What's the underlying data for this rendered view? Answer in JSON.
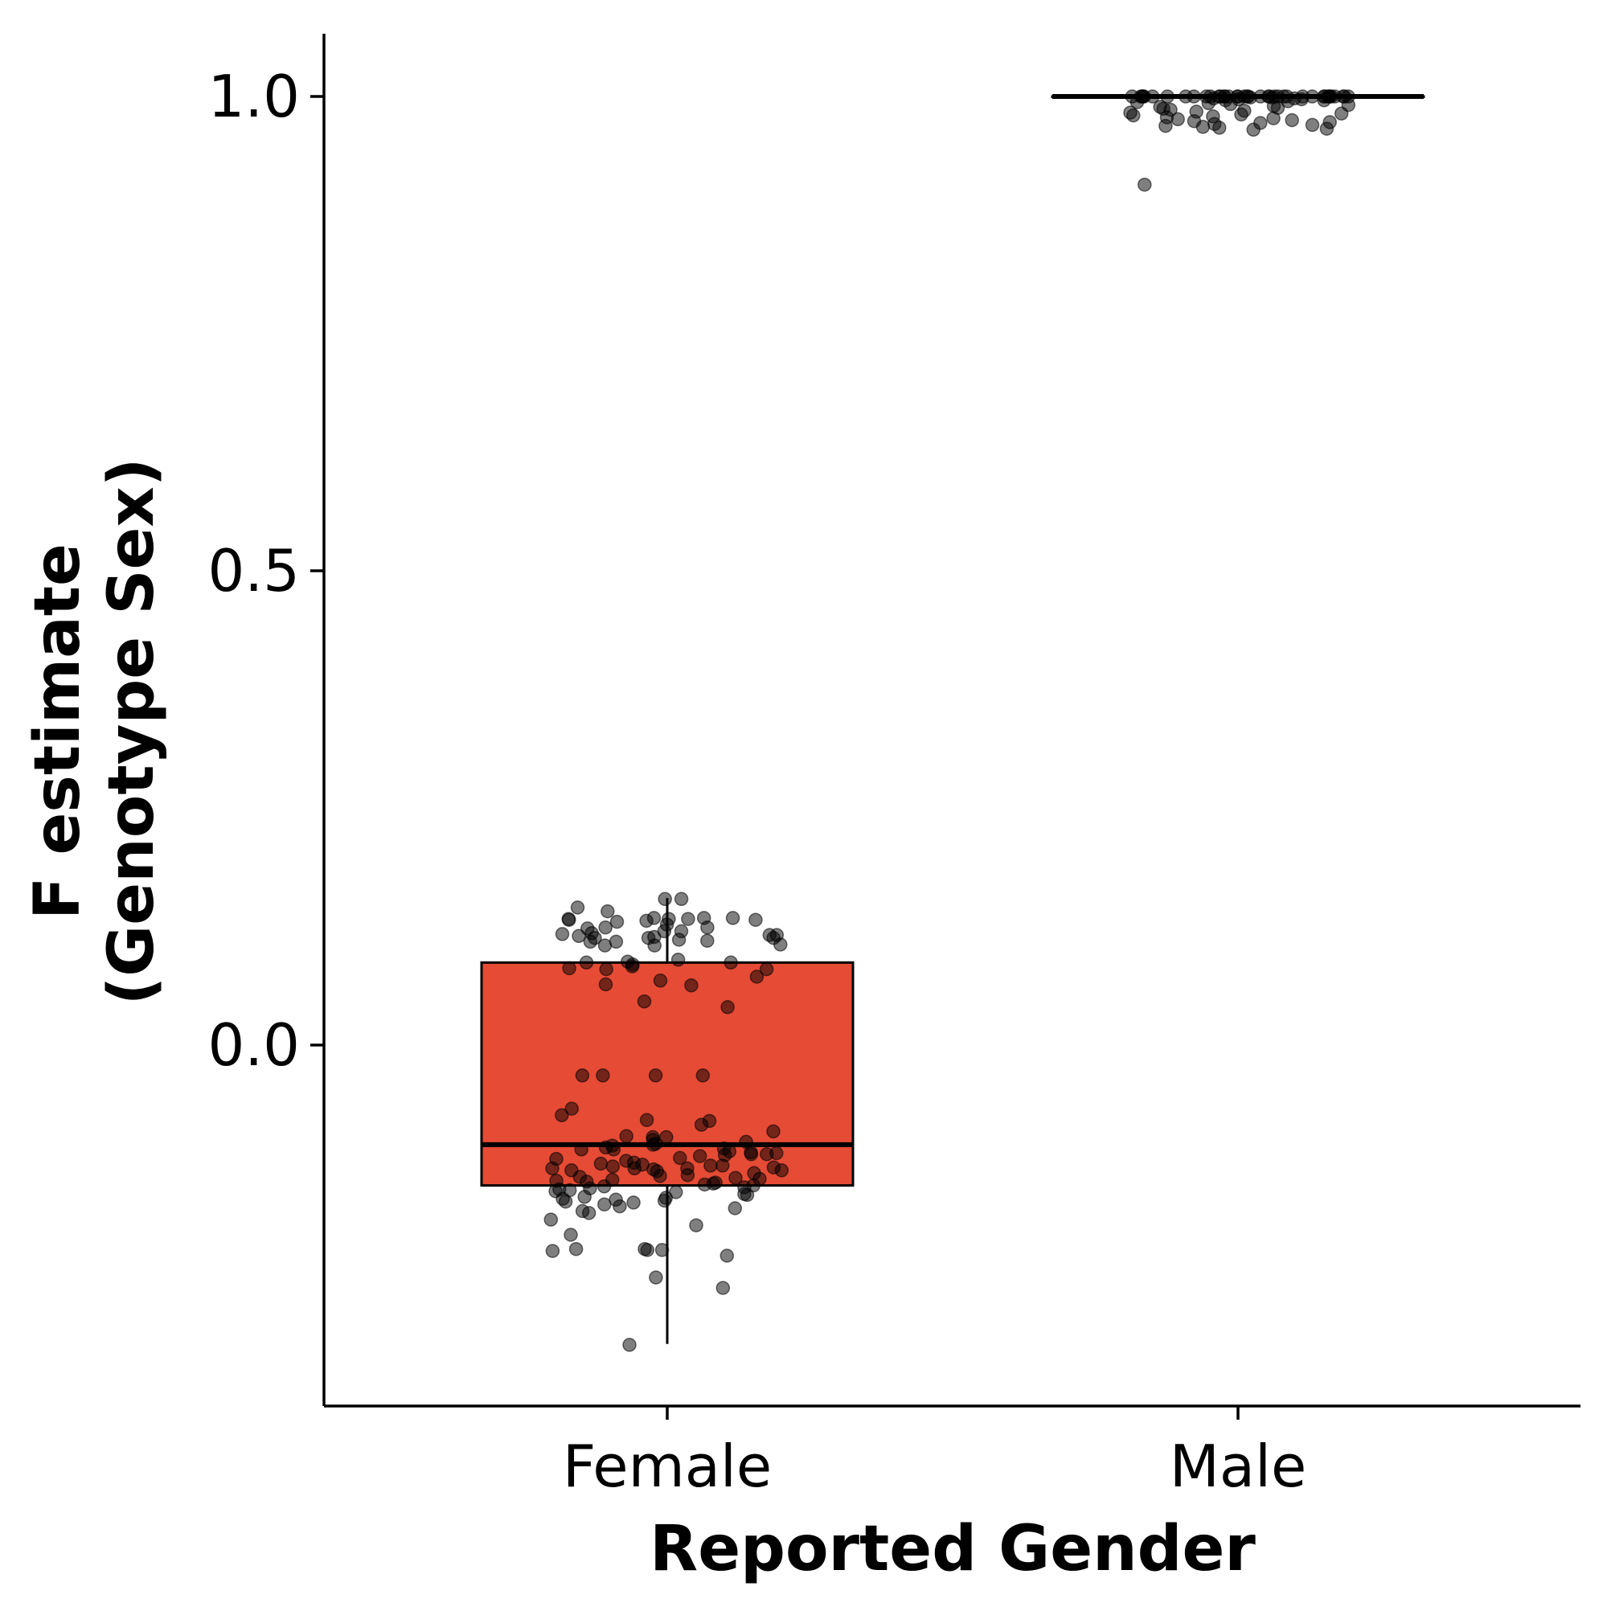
{
  "chart_data": {
    "type": "box",
    "xlabel": "Reported Gender",
    "ylabel": "F estimate\n(Genotype Sex)",
    "ylim": [
      -0.38,
      1.07
    ],
    "yticks": [
      0.0,
      0.5,
      1.0
    ],
    "ytick_labels": [
      "0.0",
      "0.5",
      "1.0"
    ],
    "grid": false,
    "legend": "none",
    "categories": [
      "Female",
      "Male"
    ],
    "box_color": "#E64B35",
    "boxes": [
      {
        "category": "Female",
        "whisker_low": -0.315,
        "q1": -0.148,
        "median": -0.105,
        "q3": 0.087,
        "whisker_high": 0.155,
        "fill": "#E64B35"
      },
      {
        "category": "Male",
        "whisker_low": 1.0,
        "q1": 1.0,
        "median": 1.0,
        "q3": 1.0,
        "whisker_high": 1.0,
        "fill": "#E64B35"
      }
    ],
    "points": [
      {
        "category": "Female",
        "values": [
          0.154,
          0.154,
          0.145,
          0.141,
          0.134,
          0.133,
          0.132,
          0.132,
          0.133,
          0.131,
          0.13,
          0.134,
          0.134,
          0.133,
          0.127,
          0.124,
          0.124,
          0.123,
          0.12,
          0.12,
          0.118,
          0.117,
          0.116,
          0.116,
          0.115,
          0.114,
          0.113,
          0.113,
          0.113,
          0.111,
          0.11,
          0.109,
          0.109,
          0.106,
          0.105,
          0.105,
          0.09,
          0.088,
          0.087,
          0.087,
          0.085,
          0.083,
          0.081,
          0.08,
          0.08,
          0.072,
          0.068,
          0.064,
          0.063,
          0.046,
          0.04,
          -0.032,
          -0.032,
          -0.032,
          -0.032,
          -0.067,
          -0.074,
          -0.079,
          -0.08,
          -0.084,
          -0.091,
          -0.096,
          -0.097,
          -0.097,
          -0.1,
          -0.102,
          -0.104,
          -0.105,
          -0.106,
          -0.108,
          -0.109,
          -0.11,
          -0.11,
          -0.112,
          -0.113,
          -0.114,
          -0.115,
          -0.115,
          -0.116,
          -0.117,
          -0.119,
          -0.12,
          -0.122,
          -0.124,
          -0.125,
          -0.126,
          -0.127,
          -0.127,
          -0.128,
          -0.129,
          -0.13,
          -0.13,
          -0.13,
          -0.131,
          -0.132,
          -0.132,
          -0.133,
          -0.135,
          -0.137,
          -0.138,
          -0.139,
          -0.14,
          -0.141,
          -0.142,
          -0.143,
          -0.144,
          -0.145,
          -0.146,
          -0.147,
          -0.148,
          -0.149,
          -0.15,
          -0.151,
          -0.152,
          -0.153,
          -0.154,
          -0.155,
          -0.157,
          -0.158,
          -0.16,
          -0.161,
          -0.162,
          -0.163,
          -0.164,
          -0.165,
          -0.166,
          -0.168,
          -0.17,
          -0.172,
          -0.175,
          -0.177,
          -0.184,
          -0.19,
          -0.2,
          -0.215,
          -0.215,
          -0.216,
          -0.216,
          -0.217,
          -0.222,
          -0.245,
          -0.256,
          -0.316
        ]
      },
      {
        "category": "Male",
        "values": [
          1.0,
          1.0,
          1.0,
          1.0,
          1.0,
          1.0,
          1.0,
          1.0,
          1.0,
          1.0,
          1.0,
          1.0,
          1.0,
          1.0,
          1.0,
          1.0,
          1.0,
          1.0,
          1.0,
          1.0,
          1.0,
          1.0,
          1.0,
          1.0,
          1.0,
          1.0,
          1.0,
          1.0,
          1.0,
          1.0,
          1.0,
          1.0,
          1.0,
          1.0,
          1.0,
          1.0,
          1.0,
          1.0,
          1.0,
          1.0,
          0.999,
          0.999,
          0.998,
          0.998,
          0.997,
          0.997,
          0.996,
          0.996,
          0.995,
          0.994,
          0.993,
          0.992,
          0.991,
          0.99,
          0.989,
          0.988,
          0.987,
          0.986,
          0.985,
          0.984,
          0.983,
          0.982,
          0.981,
          0.98,
          0.979,
          0.978,
          0.977,
          0.976,
          0.975,
          0.974,
          0.973,
          0.972,
          0.971,
          0.97,
          0.969,
          0.968,
          0.967,
          0.966,
          0.965,
          0.907
        ]
      }
    ]
  }
}
